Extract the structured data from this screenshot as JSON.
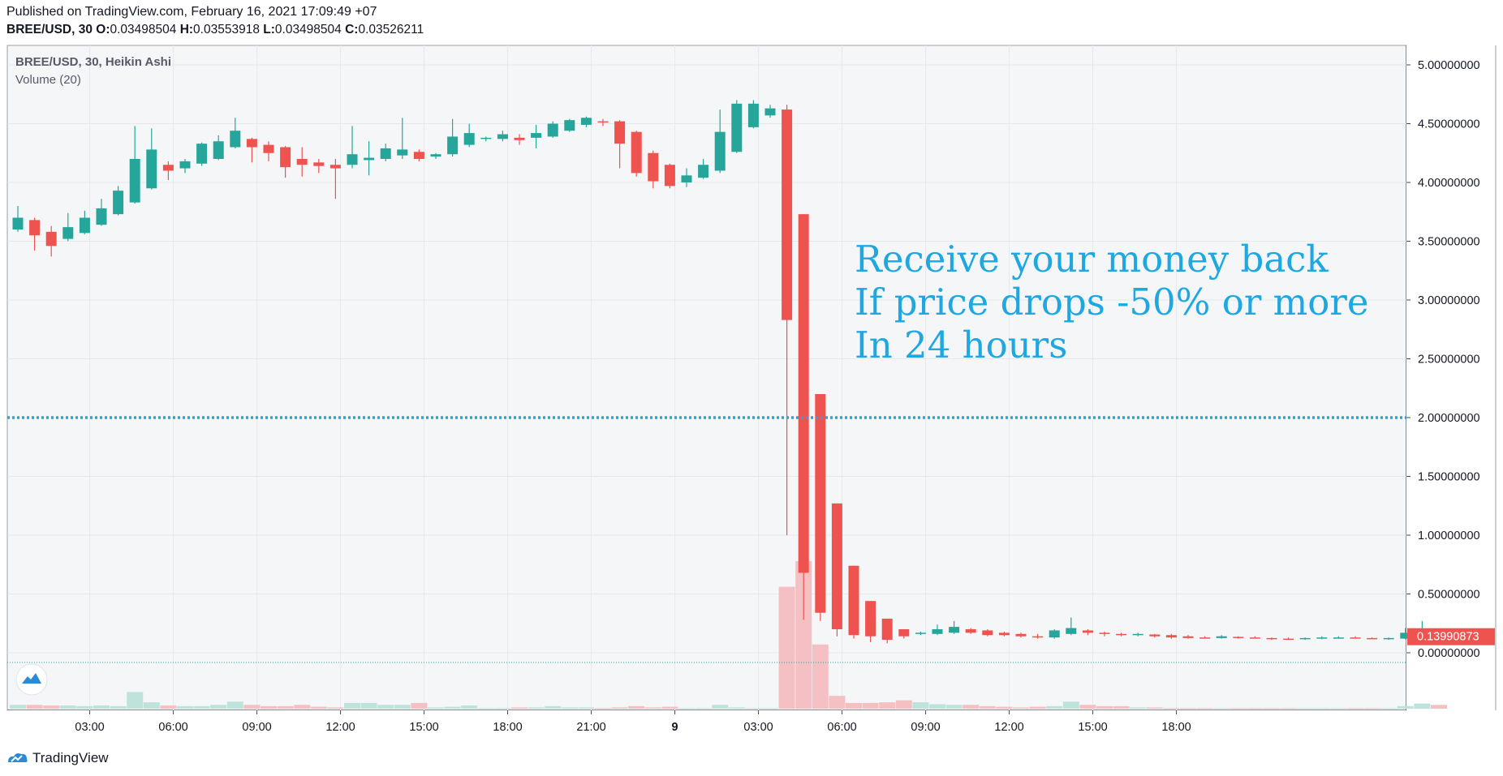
{
  "header": {
    "published": "Published on TradingView.com, February 16, 2021 17:09:49 +07",
    "symbol": "BREE/USD, 30",
    "o_label": "O:",
    "o_value": "0.03498504",
    "h_label": "H:",
    "h_value": "0.03553918",
    "l_label": "L:",
    "l_value": "0.03498504",
    "c_label": "C:",
    "c_value": "0.03526211"
  },
  "footer": {
    "brand": "TradingView"
  },
  "colors": {
    "up": "#26a69a",
    "down": "#ef5350",
    "vol_up": "#bfe3db",
    "vol_down": "#f4c0c4",
    "annotation": "#1ea7e1",
    "bg": "#f5f6f8",
    "grid": "#e6e8eb"
  },
  "chart_data": {
    "type": "candlestick",
    "title": "BREE/USD, 30, Heikin Ashi",
    "indicator": "Volume (20)",
    "x_ticks": [
      "03:00",
      "06:00",
      "09:00",
      "12:00",
      "15:00",
      "18:00",
      "21:00",
      "9",
      "03:00",
      "06:00",
      "09:00",
      "12:00",
      "15:00",
      "18:00"
    ],
    "y_ticks": [
      "5.00000000",
      "4.50000000",
      "4.00000000",
      "3.50000000",
      "3.00000000",
      "2.50000000",
      "2.00000000",
      "1.50000000",
      "1.00000000",
      "0.50000000",
      "0.00000000"
    ],
    "ylim": [
      -0.37,
      5.2
    ],
    "last_price_label": "0.13990873",
    "last_price": 0.1399,
    "horizontal_line": 2.0,
    "annotation": [
      "Receive your money back",
      "If price drops -50% or more",
      "In 24 hours"
    ],
    "candles": [
      {
        "o": 3.6,
        "h": 3.8,
        "l": 3.58,
        "c": 3.7
      },
      {
        "o": 3.68,
        "h": 3.7,
        "l": 3.42,
        "c": 3.55
      },
      {
        "o": 3.58,
        "h": 3.63,
        "l": 3.37,
        "c": 3.46
      },
      {
        "o": 3.52,
        "h": 3.74,
        "l": 3.5,
        "c": 3.62
      },
      {
        "o": 3.57,
        "h": 3.76,
        "l": 3.56,
        "c": 3.7
      },
      {
        "o": 3.64,
        "h": 3.86,
        "l": 3.63,
        "c": 3.78
      },
      {
        "o": 3.73,
        "h": 3.97,
        "l": 3.72,
        "c": 3.93
      },
      {
        "o": 3.83,
        "h": 4.48,
        "l": 3.82,
        "c": 4.2
      },
      {
        "o": 3.95,
        "h": 4.46,
        "l": 3.94,
        "c": 4.28
      },
      {
        "o": 4.15,
        "h": 4.18,
        "l": 4.02,
        "c": 4.1
      },
      {
        "o": 4.12,
        "h": 4.2,
        "l": 4.08,
        "c": 4.18
      },
      {
        "o": 4.16,
        "h": 4.34,
        "l": 4.14,
        "c": 4.33
      },
      {
        "o": 4.2,
        "h": 4.4,
        "l": 4.19,
        "c": 4.35
      },
      {
        "o": 4.3,
        "h": 4.55,
        "l": 4.29,
        "c": 4.44
      },
      {
        "o": 4.37,
        "h": 4.38,
        "l": 4.17,
        "c": 4.3
      },
      {
        "o": 4.32,
        "h": 4.35,
        "l": 4.18,
        "c": 4.25
      },
      {
        "o": 4.3,
        "h": 4.31,
        "l": 4.04,
        "c": 4.13
      },
      {
        "o": 4.2,
        "h": 4.3,
        "l": 4.05,
        "c": 4.15
      },
      {
        "o": 4.17,
        "h": 4.2,
        "l": 4.08,
        "c": 4.14
      },
      {
        "o": 4.15,
        "h": 4.2,
        "l": 3.86,
        "c": 4.12
      },
      {
        "o": 4.15,
        "h": 4.48,
        "l": 4.12,
        "c": 4.24
      },
      {
        "o": 4.19,
        "h": 4.35,
        "l": 4.06,
        "c": 4.21
      },
      {
        "o": 4.2,
        "h": 4.33,
        "l": 4.18,
        "c": 4.29
      },
      {
        "o": 4.23,
        "h": 4.55,
        "l": 4.2,
        "c": 4.28
      },
      {
        "o": 4.26,
        "h": 4.28,
        "l": 4.18,
        "c": 4.2
      },
      {
        "o": 4.22,
        "h": 4.25,
        "l": 4.2,
        "c": 4.24
      },
      {
        "o": 4.24,
        "h": 4.54,
        "l": 4.22,
        "c": 4.39
      },
      {
        "o": 4.32,
        "h": 4.5,
        "l": 4.3,
        "c": 4.42
      },
      {
        "o": 4.37,
        "h": 4.39,
        "l": 4.35,
        "c": 4.38
      },
      {
        "o": 4.37,
        "h": 4.44,
        "l": 4.35,
        "c": 4.41
      },
      {
        "o": 4.38,
        "h": 4.41,
        "l": 4.32,
        "c": 4.36
      },
      {
        "o": 4.38,
        "h": 4.49,
        "l": 4.29,
        "c": 4.42
      },
      {
        "o": 4.39,
        "h": 4.52,
        "l": 4.38,
        "c": 4.5
      },
      {
        "o": 4.44,
        "h": 4.54,
        "l": 4.43,
        "c": 4.53
      },
      {
        "o": 4.49,
        "h": 4.56,
        "l": 4.47,
        "c": 4.55
      },
      {
        "o": 4.52,
        "h": 4.54,
        "l": 4.48,
        "c": 4.51
      },
      {
        "o": 4.52,
        "h": 4.53,
        "l": 4.12,
        "c": 4.33
      },
      {
        "o": 4.43,
        "h": 4.44,
        "l": 4.05,
        "c": 4.08
      },
      {
        "o": 4.25,
        "h": 4.27,
        "l": 3.95,
        "c": 4.01
      },
      {
        "o": 4.15,
        "h": 4.16,
        "l": 3.95,
        "c": 3.97
      },
      {
        "o": 4.0,
        "h": 4.12,
        "l": 3.96,
        "c": 4.06
      },
      {
        "o": 4.04,
        "h": 4.2,
        "l": 4.03,
        "c": 4.15
      },
      {
        "o": 4.1,
        "h": 4.62,
        "l": 4.08,
        "c": 4.43
      },
      {
        "o": 4.26,
        "h": 4.7,
        "l": 4.25,
        "c": 4.67
      },
      {
        "o": 4.47,
        "h": 4.7,
        "l": 4.46,
        "c": 4.67
      },
      {
        "o": 4.57,
        "h": 4.66,
        "l": 4.55,
        "c": 4.63
      },
      {
        "o": 4.62,
        "h": 4.66,
        "l": 1.0,
        "c": 2.83
      },
      {
        "o": 3.73,
        "h": 3.73,
        "l": 0.28,
        "c": 0.68
      },
      {
        "o": 2.2,
        "h": 2.2,
        "l": 0.27,
        "c": 0.34
      },
      {
        "o": 1.27,
        "h": 1.27,
        "l": 0.14,
        "c": 0.2
      },
      {
        "o": 0.74,
        "h": 0.74,
        "l": 0.12,
        "c": 0.15
      },
      {
        "o": 0.44,
        "h": 0.44,
        "l": 0.09,
        "c": 0.14
      },
      {
        "o": 0.29,
        "h": 0.29,
        "l": 0.08,
        "c": 0.11
      },
      {
        "o": 0.2,
        "h": 0.2,
        "l": 0.12,
        "c": 0.14
      },
      {
        "o": 0.16,
        "h": 0.18,
        "l": 0.15,
        "c": 0.17
      },
      {
        "o": 0.16,
        "h": 0.24,
        "l": 0.15,
        "c": 0.2
      },
      {
        "o": 0.17,
        "h": 0.27,
        "l": 0.16,
        "c": 0.22
      },
      {
        "o": 0.2,
        "h": 0.21,
        "l": 0.16,
        "c": 0.17
      },
      {
        "o": 0.19,
        "h": 0.2,
        "l": 0.14,
        "c": 0.15
      },
      {
        "o": 0.17,
        "h": 0.18,
        "l": 0.14,
        "c": 0.15
      },
      {
        "o": 0.16,
        "h": 0.17,
        "l": 0.13,
        "c": 0.14
      },
      {
        "o": 0.14,
        "h": 0.16,
        "l": 0.12,
        "c": 0.13
      },
      {
        "o": 0.13,
        "h": 0.2,
        "l": 0.12,
        "c": 0.19
      },
      {
        "o": 0.16,
        "h": 0.3,
        "l": 0.15,
        "c": 0.21
      },
      {
        "o": 0.19,
        "h": 0.2,
        "l": 0.15,
        "c": 0.17
      },
      {
        "o": 0.17,
        "h": 0.18,
        "l": 0.14,
        "c": 0.16
      },
      {
        "o": 0.16,
        "h": 0.17,
        "l": 0.14,
        "c": 0.15
      },
      {
        "o": 0.15,
        "h": 0.17,
        "l": 0.14,
        "c": 0.16
      },
      {
        "o": 0.155,
        "h": 0.16,
        "l": 0.13,
        "c": 0.14
      },
      {
        "o": 0.15,
        "h": 0.16,
        "l": 0.12,
        "c": 0.13
      },
      {
        "o": 0.14,
        "h": 0.15,
        "l": 0.12,
        "c": 0.125
      },
      {
        "o": 0.13,
        "h": 0.14,
        "l": 0.12,
        "c": 0.125
      },
      {
        "o": 0.125,
        "h": 0.15,
        "l": 0.12,
        "c": 0.14
      },
      {
        "o": 0.135,
        "h": 0.14,
        "l": 0.12,
        "c": 0.13
      },
      {
        "o": 0.13,
        "h": 0.14,
        "l": 0.12,
        "c": 0.125
      },
      {
        "o": 0.125,
        "h": 0.13,
        "l": 0.11,
        "c": 0.115
      },
      {
        "o": 0.12,
        "h": 0.13,
        "l": 0.11,
        "c": 0.115
      },
      {
        "o": 0.115,
        "h": 0.13,
        "l": 0.11,
        "c": 0.125
      },
      {
        "o": 0.12,
        "h": 0.14,
        "l": 0.115,
        "c": 0.13
      },
      {
        "o": 0.125,
        "h": 0.14,
        "l": 0.12,
        "c": 0.13
      },
      {
        "o": 0.13,
        "h": 0.14,
        "l": 0.12,
        "c": 0.125
      },
      {
        "o": 0.125,
        "h": 0.13,
        "l": 0.12,
        "c": 0.12
      },
      {
        "o": 0.12,
        "h": 0.13,
        "l": 0.11,
        "c": 0.125
      },
      {
        "o": 0.12,
        "h": 0.21,
        "l": 0.115,
        "c": 0.17
      },
      {
        "o": 0.15,
        "h": 0.27,
        "l": 0.14,
        "c": 0.2
      },
      {
        "o": 0.17,
        "h": 0.18,
        "l": 0.13,
        "c": 0.14
      }
    ],
    "volumes": [
      0.3,
      0.3,
      0.25,
      0.25,
      0.2,
      0.25,
      0.2,
      1.3,
      0.5,
      0.25,
      0.2,
      0.2,
      0.3,
      0.55,
      0.3,
      0.2,
      0.2,
      0.3,
      0.15,
      0.1,
      0.45,
      0.45,
      0.3,
      0.3,
      0.45,
      0.1,
      0.15,
      0.25,
      0.05,
      0.05,
      0.1,
      0.1,
      0.2,
      0.1,
      0.1,
      0.05,
      0.1,
      0.2,
      0.1,
      0.15,
      0.05,
      0.05,
      0.3,
      0.1,
      0.05,
      0.05,
      9.5,
      11.5,
      5.0,
      1.0,
      0.45,
      0.45,
      0.5,
      0.65,
      0.5,
      0.35,
      0.3,
      0.3,
      0.2,
      0.15,
      0.1,
      0.15,
      0.2,
      0.55,
      0.3,
      0.2,
      0.2,
      0.1,
      0.1,
      0.05,
      0.05,
      0.05,
      0.05,
      0.05,
      0.05,
      0.05,
      0.05,
      0.05,
      0.05,
      0.05,
      0.05,
      0.05,
      0.05,
      0.2,
      0.4,
      0.3
    ],
    "volume_scale_max": 12
  }
}
